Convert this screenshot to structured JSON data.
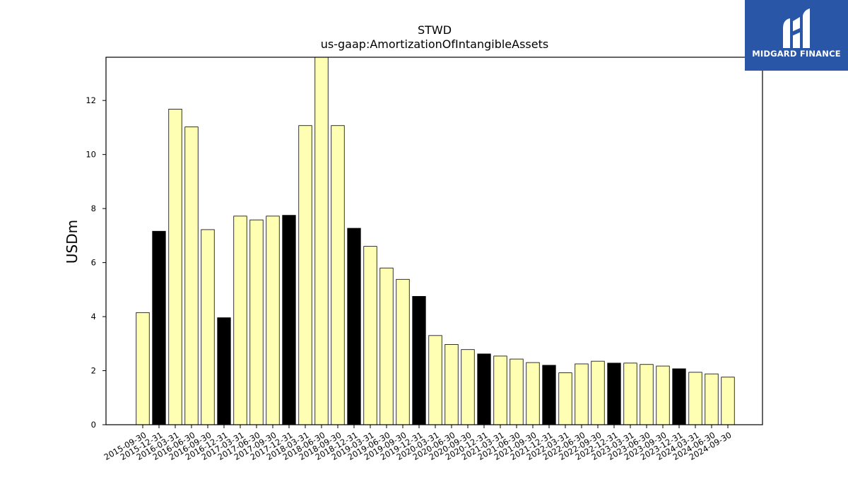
{
  "chart_data": {
    "type": "bar",
    "title": "STWD",
    "subtitle": "us-gaap:AmortizationOfIntangibleAssets",
    "ylabel": "USDm",
    "xlabel": "",
    "ylim": [
      0,
      13.6
    ],
    "yticks": [
      0,
      2,
      4,
      6,
      8,
      10,
      12
    ],
    "grid": false,
    "colors": {
      "quarter": "#ffffb3",
      "year_end": "#000000",
      "edge": "#000000"
    },
    "categories": [
      "2015-09-30",
      "2015-12-31",
      "2016-03-31",
      "2016-06-30",
      "2016-09-30",
      "2016-12-31",
      "2017-03-31",
      "2017-06-30",
      "2017-09-30",
      "2017-12-31",
      "2018-03-31",
      "2018-06-30",
      "2018-09-30",
      "2018-12-31",
      "2019-03-31",
      "2019-06-30",
      "2019-09-30",
      "2019-12-31",
      "2020-03-31",
      "2020-06-30",
      "2020-09-30",
      "2020-12-31",
      "2021-03-31",
      "2021-06-30",
      "2021-09-30",
      "2021-12-31",
      "2022-03-31",
      "2022-06-30",
      "2022-09-30",
      "2022-12-31",
      "2023-03-31",
      "2023-06-30",
      "2023-09-30",
      "2023-12-31",
      "2024-03-31",
      "2024-06-30",
      "2024-09-30"
    ],
    "values": [
      4.15,
      7.16,
      11.68,
      11.02,
      7.22,
      3.96,
      7.72,
      7.58,
      7.72,
      7.75,
      11.07,
      13.7,
      11.07,
      7.27,
      6.6,
      5.8,
      5.38,
      4.75,
      3.3,
      2.97,
      2.78,
      2.62,
      2.54,
      2.43,
      2.3,
      2.2,
      1.92,
      2.25,
      2.35,
      2.28,
      2.28,
      2.23,
      2.17,
      2.07,
      1.94,
      1.88,
      1.76
    ]
  },
  "logo": {
    "text": "MIDGARD FINANCE"
  }
}
